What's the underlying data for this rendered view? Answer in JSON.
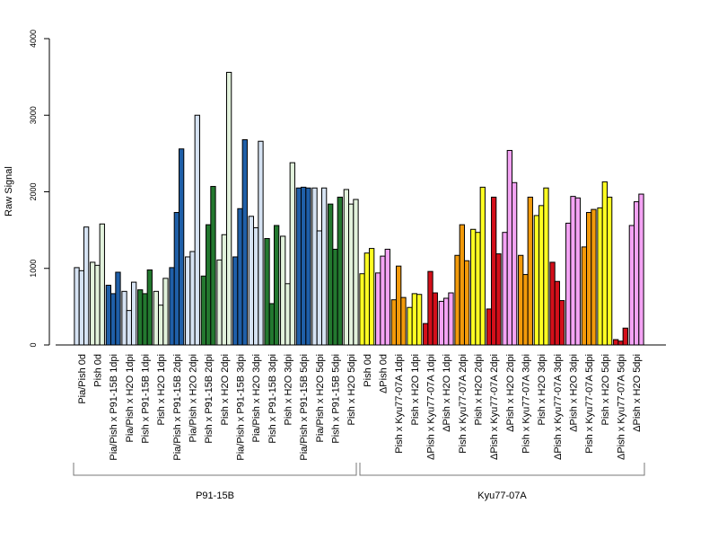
{
  "chart_data": {
    "type": "bar",
    "ylabel": "Raw Signal",
    "ylim": [
      0,
      4000
    ],
    "yticks": [
      0,
      1000,
      2000,
      3000,
      4000
    ],
    "grid": false,
    "colors": {
      "lightblue": "#d6e3f3",
      "lightgreen": "#e2f2dc",
      "blue": "#1f5fa8",
      "green": "#23782f",
      "yellow": "#ffff22",
      "pink": "#f4a3f4",
      "orange": "#f29a0a",
      "red": "#d40f1a"
    },
    "categories": [
      {
        "label": "Pia/Pish 0d",
        "color": "lightblue",
        "values": [
          1010,
          970,
          1540
        ]
      },
      {
        "label": "Pish 0d",
        "color": "lightgreen",
        "values": [
          1080,
          1040,
          1580
        ]
      },
      {
        "label": "Pia/Pish x P91-15B 1dpi",
        "color": "blue",
        "values": [
          780,
          670,
          950
        ]
      },
      {
        "label": "Pia/Pish x H2O 1dpi",
        "color": "lightblue",
        "values": [
          700,
          450,
          820
        ]
      },
      {
        "label": "Pish x P91-15B 1dpi",
        "color": "green",
        "values": [
          720,
          670,
          980
        ]
      },
      {
        "label": "Pish x H2O 1dpi",
        "color": "lightgreen",
        "values": [
          700,
          520,
          870
        ]
      },
      {
        "label": "Pia/Pish x P91-15B 2dpi",
        "color": "blue",
        "values": [
          1010,
          1730,
          2560
        ]
      },
      {
        "label": "Pia/Pish x H2O 2dpi",
        "color": "lightblue",
        "values": [
          1150,
          1220,
          3000
        ]
      },
      {
        "label": "Pish x P91-15B 2dpi",
        "color": "green",
        "values": [
          900,
          1570,
          2070
        ]
      },
      {
        "label": "Pish x H2O 2dpi",
        "color": "lightgreen",
        "values": [
          1110,
          1440,
          3560
        ]
      },
      {
        "label": "Pia/Pish x P91-15B 3dpi",
        "color": "blue",
        "values": [
          1150,
          1780,
          2680
        ]
      },
      {
        "label": "Pia/Pish x H2O 3dpi",
        "color": "lightblue",
        "values": [
          1680,
          1530,
          2660
        ]
      },
      {
        "label": "Pish x P91-15B 3dpi",
        "color": "green",
        "values": [
          1390,
          540,
          1560
        ]
      },
      {
        "label": "Pish x H2O 3dpi",
        "color": "lightgreen",
        "values": [
          1420,
          800,
          2380
        ]
      },
      {
        "label": "Pia/Pish x P91-15B 5dpi",
        "color": "blue",
        "values": [
          2050,
          2060,
          2050
        ]
      },
      {
        "label": "Pia/Pish x H2O 5dpi",
        "color": "lightblue",
        "values": [
          2050,
          1490,
          2050
        ]
      },
      {
        "label": "Pish x P91-15B 5dpi",
        "color": "green",
        "values": [
          1840,
          1250,
          1930
        ]
      },
      {
        "label": "Pish x H2O 5dpi",
        "color": "lightgreen",
        "values": [
          2030,
          1840,
          1900
        ]
      },
      {
        "label": "Pish 0d",
        "color": "yellow",
        "values": [
          930,
          1200,
          1260
        ]
      },
      {
        "label": "ΔPish 0d",
        "color": "pink",
        "values": [
          940,
          1160,
          1250
        ]
      },
      {
        "label": "Pish x Kyu77-07A 1dpi",
        "color": "orange",
        "values": [
          590,
          1030,
          620
        ]
      },
      {
        "label": "Pish x H2O 1dpi",
        "color": "yellow",
        "values": [
          490,
          670,
          660
        ]
      },
      {
        "label": "ΔPish x Kyu77-07A 1dpi",
        "color": "red",
        "values": [
          280,
          960,
          680
        ]
      },
      {
        "label": "ΔPish x H2O 1dpi",
        "color": "pink",
        "values": [
          570,
          610,
          680
        ]
      },
      {
        "label": "Pish x Kyu77-07A 2dpi",
        "color": "orange",
        "values": [
          1170,
          1570,
          1100
        ]
      },
      {
        "label": "Pish x H2O 2dpi",
        "color": "yellow",
        "values": [
          1510,
          1470,
          2060
        ]
      },
      {
        "label": "ΔPish x Kyu77-07A 2dpi",
        "color": "red",
        "values": [
          470,
          1930,
          1190
        ]
      },
      {
        "label": "ΔPish x H2O 2dpi",
        "color": "pink",
        "values": [
          1470,
          2540,
          2120
        ]
      },
      {
        "label": "Pish x Kyu77-07A 3dpi",
        "color": "orange",
        "values": [
          1170,
          920,
          1930
        ]
      },
      {
        "label": "Pish x H2O 3dpi",
        "color": "yellow",
        "values": [
          1690,
          1820,
          2050
        ]
      },
      {
        "label": "ΔPish x Kyu77-07A 3dpi",
        "color": "red",
        "values": [
          1080,
          830,
          580
        ]
      },
      {
        "label": "ΔPish x H2O 3dpi",
        "color": "pink",
        "values": [
          1590,
          1940,
          1920
        ]
      },
      {
        "label": "Pish x Kyu77-07A 5dpi",
        "color": "orange",
        "values": [
          1280,
          1730,
          1770
        ]
      },
      {
        "label": "Pish x H2O 5dpi",
        "color": "yellow",
        "values": [
          1790,
          2130,
          1930
        ]
      },
      {
        "label": "ΔPish x Kyu77-07A 5dpi",
        "color": "red",
        "values": [
          70,
          50,
          220
        ]
      },
      {
        "label": "ΔPish x H2O 5dpi",
        "color": "pink",
        "values": [
          1560,
          1870,
          1970
        ]
      }
    ],
    "groups": [
      {
        "label": "P91-15B",
        "from": 0,
        "to": 17
      },
      {
        "label": "Kyu77-07A",
        "from": 18,
        "to": 35
      }
    ]
  }
}
